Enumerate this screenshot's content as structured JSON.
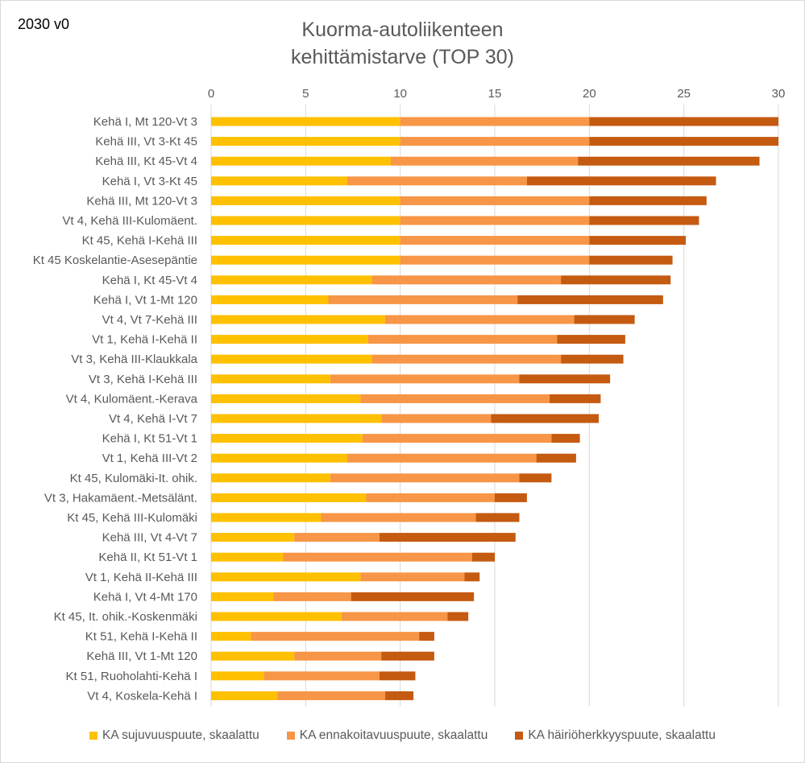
{
  "version_label": "2030 v0",
  "chart_data": {
    "type": "bar",
    "orientation": "horizontal",
    "stacked": true,
    "title_lines": [
      "Kuorma-autoliikenteen",
      "kehittämistarve (TOP 30)"
    ],
    "xlim": [
      0,
      30
    ],
    "xticks": [
      0,
      5,
      10,
      15,
      20,
      25,
      30
    ],
    "grid": true,
    "legend_position": "bottom",
    "categories": [
      "Kehä I, Mt 120-Vt 3",
      "Kehä III, Vt 3-Kt 45",
      "Kehä III, Kt 45-Vt 4",
      "Kehä I, Vt 3-Kt 45",
      "Kehä III, Mt 120-Vt 3",
      "Vt 4, Kehä III-Kulomäent.",
      "Kt 45, Kehä I-Kehä III",
      "Kt 45 Koskelantie-Asesepäntie",
      "Kehä I, Kt 45-Vt 4",
      "Kehä I, Vt 1-Mt 120",
      "Vt 4, Vt 7-Kehä III",
      "Vt 1, Kehä I-Kehä II",
      "Vt 3, Kehä III-Klaukkala",
      "Vt 3, Kehä I-Kehä III",
      "Vt 4, Kulomäent.-Kerava",
      "Vt 4, Kehä I-Vt 7",
      "Kehä I, Kt 51-Vt 1",
      "Vt 1, Kehä III-Vt 2",
      "Kt 45, Kulomäki-It. ohik.",
      "Vt 3, Hakamäent.-Metsälänt.",
      "Kt 45, Kehä III-Kulomäki",
      "Kehä III, Vt 4-Vt 7",
      "Kehä II, Kt 51-Vt 1",
      "Vt 1, Kehä II-Kehä III",
      "Kehä I, Vt 4-Mt 170",
      "Kt 45, It. ohik.-Koskenmäki",
      "Kt 51, Kehä I-Kehä II",
      "Kehä III, Vt 1-Mt 120",
      "Kt 51, Ruoholahti-Kehä I",
      "Vt 4, Koskela-Kehä I"
    ],
    "series": [
      {
        "name": "KA sujuvuuspuute, skaalattu",
        "color": "#FFC000",
        "values": [
          10,
          10,
          9.5,
          7.2,
          10,
          10,
          10,
          10,
          8.5,
          6.2,
          9.2,
          8.3,
          8.5,
          6.3,
          7.9,
          9.0,
          8.0,
          7.2,
          6.3,
          8.2,
          5.8,
          4.4,
          3.8,
          7.9,
          3.3,
          6.9,
          2.1,
          4.4,
          2.8,
          3.5
        ]
      },
      {
        "name": "KA ennakoitavuuspuute, skaalattu",
        "color": "#F79646",
        "values": [
          10,
          10,
          9.9,
          9.5,
          10,
          10,
          10,
          10,
          10,
          10,
          10,
          10,
          10,
          10,
          10,
          5.8,
          10,
          10,
          10,
          6.8,
          8.2,
          4.5,
          10,
          5.5,
          4.1,
          5.6,
          8.9,
          4.6,
          6.1,
          5.7
        ]
      },
      {
        "name": "KA häiriöherkkyyspuute, skaalattu",
        "color": "#C55A11",
        "values": [
          10,
          10,
          9.6,
          10,
          6.2,
          5.8,
          5.1,
          4.4,
          5.8,
          7.7,
          3.2,
          3.6,
          3.3,
          4.8,
          2.7,
          5.7,
          1.5,
          2.1,
          1.7,
          1.7,
          2.3,
          7.2,
          1.2,
          0.8,
          6.5,
          1.1,
          0.8,
          2.8,
          1.9,
          1.5
        ]
      }
    ]
  }
}
